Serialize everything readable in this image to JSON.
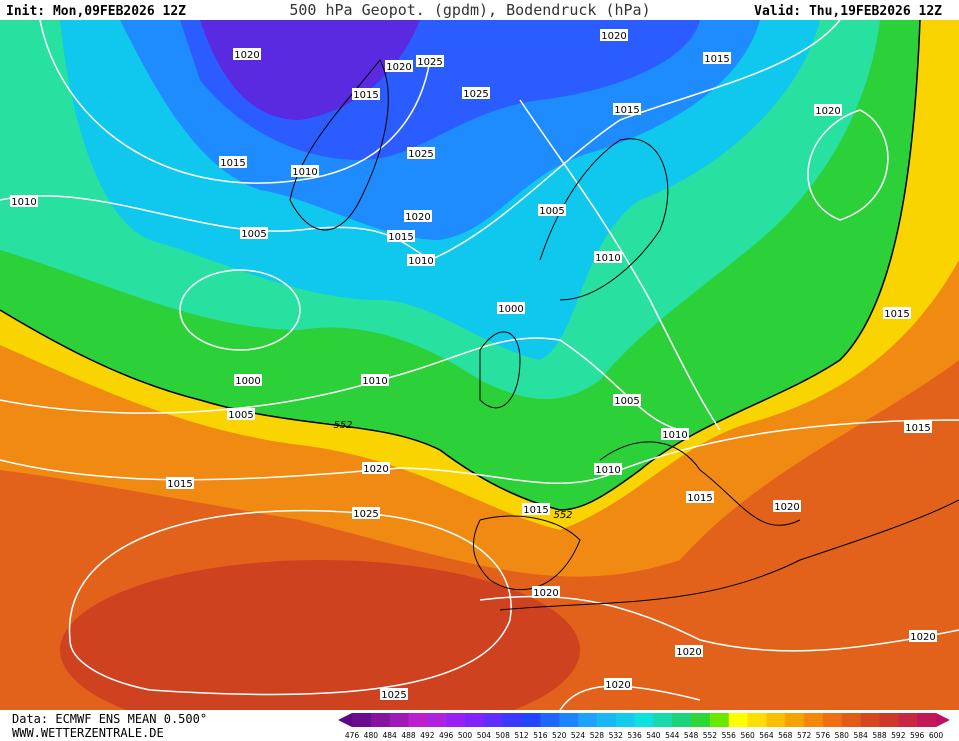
{
  "header": {
    "init": "Init: Mon,09FEB2026 12Z",
    "title": "500 hPa Geopot. (gpdm), Bodendruck (hPa)",
    "valid": "Valid: Thu,19FEB2026 12Z"
  },
  "footer": {
    "data": "Data: ECMWF ENS MEAN 0.500°",
    "site": "WWW.WETTERZENTRALE.DE"
  },
  "colorbar": [
    476,
    480,
    484,
    488,
    492,
    496,
    500,
    504,
    508,
    512,
    516,
    520,
    524,
    528,
    532,
    536,
    540,
    544,
    548,
    552,
    556,
    560,
    564,
    568,
    572,
    576,
    580,
    584,
    588,
    592,
    596,
    600
  ],
  "isobar_labels": [
    1020,
    1020,
    1025,
    1015,
    1025,
    1020,
    1015,
    1015,
    1020,
    1015,
    1010,
    1025,
    1010,
    1005,
    1020,
    1005,
    1015,
    1010,
    1010,
    1000,
    1015,
    1000,
    1010,
    1005,
    1005,
    1015,
    1010,
    1020,
    1010,
    1015,
    1015,
    1020,
    1015,
    1025,
    1020,
    1020,
    1020,
    1020,
    1025
  ],
  "contour_labels": [
    552,
    552
  ]
}
